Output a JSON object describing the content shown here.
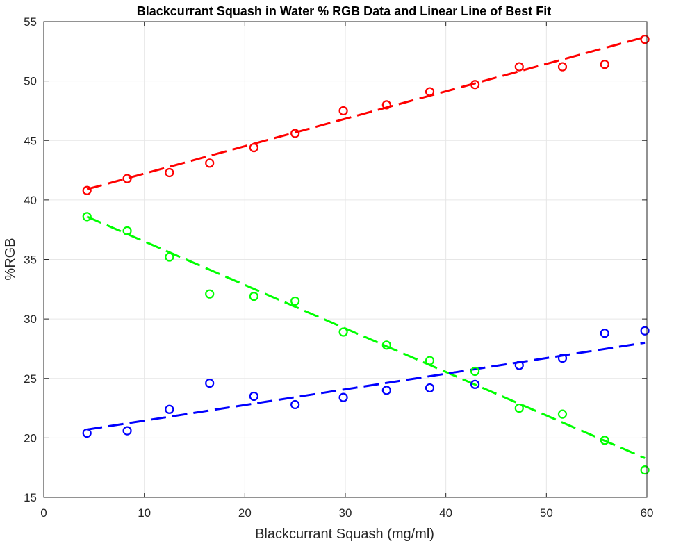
{
  "chart_data": {
    "type": "scatter",
    "title": "Blackcurrant Squash in Water % RGB Data and Linear Line of Best Fit",
    "xlabel": "Blackcurrant Squash (mg/ml)",
    "ylabel": "%RGB",
    "xlim": [
      0,
      60
    ],
    "ylim": [
      15,
      55
    ],
    "xticks": [
      0,
      10,
      20,
      30,
      40,
      50,
      60
    ],
    "yticks": [
      15,
      20,
      25,
      30,
      35,
      40,
      45,
      50,
      55
    ],
    "grid": true,
    "x": [
      4.3,
      8.3,
      12.5,
      16.5,
      20.9,
      25.0,
      29.8,
      34.1,
      38.4,
      42.9,
      47.3,
      51.6,
      55.8,
      59.8
    ],
    "series": [
      {
        "color": "#ff0000",
        "values": [
          40.8,
          41.8,
          42.3,
          43.1,
          44.4,
          45.6,
          47.5,
          48.0,
          49.1,
          49.7,
          51.2,
          51.2,
          51.4,
          53.5
        ],
        "fit": {
          "x": [
            4.3,
            59.8
          ],
          "y": [
            40.9,
            53.7
          ]
        }
      },
      {
        "color": "#00ff00",
        "values": [
          38.6,
          37.4,
          35.2,
          32.1,
          31.9,
          31.5,
          28.9,
          27.8,
          26.5,
          25.6,
          22.5,
          22.0,
          19.8,
          17.3
        ],
        "fit": {
          "x": [
            4.3,
            59.8
          ],
          "y": [
            38.6,
            18.3
          ]
        }
      },
      {
        "color": "#0000ff",
        "values": [
          20.4,
          20.6,
          22.4,
          24.6,
          23.5,
          22.8,
          23.4,
          24.0,
          24.2,
          24.5,
          26.1,
          26.7,
          28.8,
          29.0
        ],
        "fit": {
          "x": [
            4.3,
            59.8
          ],
          "y": [
            20.7,
            28.0
          ]
        }
      }
    ]
  }
}
